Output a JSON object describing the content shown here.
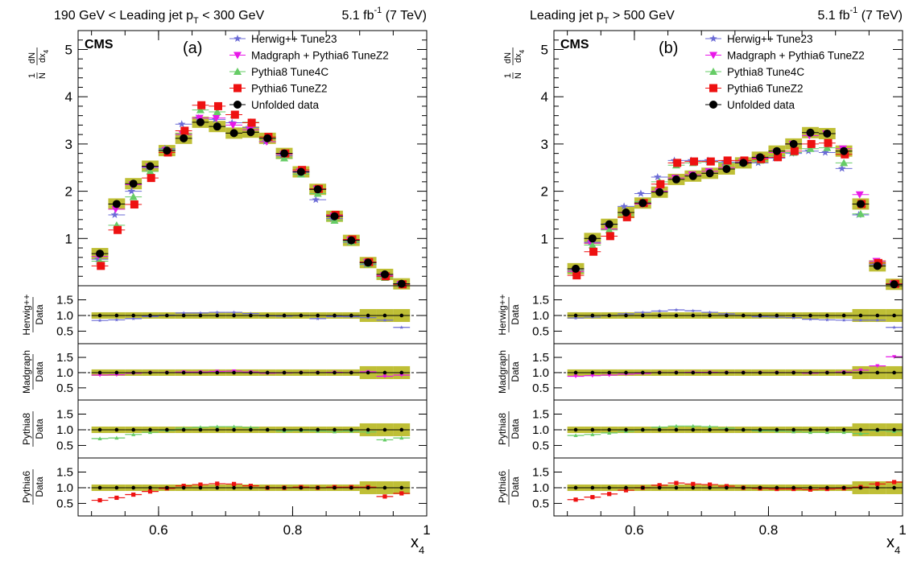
{
  "colors": {
    "herwig": "#6b6bd6",
    "madgraph": "#e818e8",
    "pythia8": "#66cc66",
    "pythia6": "#ee1111",
    "data": "#000000",
    "band": "#b8b820"
  },
  "ratio_labels": [
    {
      "name": "Herwig++",
      "den": "Data"
    },
    {
      "name": "Madgraph",
      "den": "Data"
    },
    {
      "name": "Pythia8",
      "den": "Data"
    },
    {
      "name": "Pythia6",
      "den": "Data"
    }
  ],
  "ratio_ticks": [
    "1.5",
    "1.0",
    "0.5"
  ],
  "xlabel": {
    "main": "x",
    "sub": "4"
  },
  "ylabel": {
    "frac_num": "1",
    "frac_den": "N",
    "d_num": "dN",
    "d_den": "dx",
    "d_sub": "4"
  },
  "chart_data": [
    {
      "type": "scatter",
      "title_left": {
        "pre": "190 GeV < Leading jet p",
        "sub": "T",
        "post": " < 300 GeV"
      },
      "title_right": {
        "lumi": "5.1 fb",
        "sup": "-1",
        "energy": " (7 TeV)"
      },
      "cms": "CMS",
      "panel_label": "(a)",
      "legend": [
        "Herwig++ Tune23",
        "Madgraph + Pythia6 TuneZ2",
        "Pythia8 Tune4C",
        "Pythia6 TuneZ2",
        "Unfolded data"
      ],
      "x": [
        0.5125,
        0.5375,
        0.5625,
        0.5875,
        0.6125,
        0.6375,
        0.6625,
        0.6875,
        0.7125,
        0.7375,
        0.7625,
        0.7875,
        0.8125,
        0.8375,
        0.8625,
        0.8875,
        0.9125,
        0.9375,
        0.9625
      ],
      "xlim": [
        0.48,
        1.0
      ],
      "xticks": [
        "0.6",
        "0.8",
        "1"
      ],
      "ylim": [
        0,
        5.4
      ],
      "yticks": [
        "1",
        "2",
        "3",
        "4",
        "5"
      ],
      "ratio_ylim": [
        0.1,
        1.95
      ],
      "series": [
        {
          "name": "Herwig++ Tune23",
          "values": [
            0.56,
            1.5,
            2.0,
            2.5,
            2.9,
            3.42,
            3.55,
            3.52,
            3.45,
            3.35,
            3.05,
            2.75,
            2.4,
            1.82,
            1.42,
            0.92,
            0.45,
            0.2,
            0.04
          ]
        },
        {
          "name": "Madgraph + Pythia6 TuneZ2",
          "values": [
            0.62,
            1.62,
            2.14,
            2.52,
            2.87,
            3.2,
            3.55,
            3.55,
            3.4,
            3.3,
            3.05,
            2.78,
            2.42,
            2.05,
            1.48,
            0.97,
            0.5,
            0.22,
            0.03
          ]
        },
        {
          "name": "Pythia8 Tune4C",
          "values": [
            0.52,
            1.28,
            1.88,
            2.42,
            2.88,
            3.22,
            3.72,
            3.68,
            3.62,
            3.46,
            3.12,
            2.7,
            2.36,
            1.95,
            1.38,
            0.93,
            0.46,
            0.17,
            0.03
          ]
        },
        {
          "name": "Pythia6 TuneZ2",
          "values": [
            0.42,
            1.18,
            1.72,
            2.28,
            2.82,
            3.28,
            3.82,
            3.8,
            3.62,
            3.45,
            3.15,
            2.8,
            2.45,
            2.05,
            1.5,
            0.98,
            0.5,
            0.2,
            0.03
          ]
        },
        {
          "name": "Unfolded data",
          "values": [
            0.68,
            1.73,
            2.16,
            2.53,
            2.86,
            3.12,
            3.46,
            3.37,
            3.23,
            3.25,
            3.12,
            2.8,
            2.41,
            2.04,
            1.47,
            0.96,
            0.49,
            0.24,
            0.04
          ]
        }
      ],
      "ratios": [
        [
          0.84,
          0.86,
          0.9,
          0.97,
          1.01,
          1.08,
          1.08,
          1.1,
          1.1,
          1.06,
          0.99,
          0.98,
          1.0,
          0.9,
          0.97,
          0.96,
          0.93,
          0.85,
          0.62
        ],
        [
          0.92,
          0.93,
          0.98,
          1.0,
          1.0,
          1.02,
          1.02,
          1.04,
          1.05,
          1.02,
          0.98,
          0.99,
          1.0,
          1.0,
          1.01,
          1.0,
          1.03,
          0.88,
          0.92
        ],
        [
          0.72,
          0.74,
          0.85,
          0.92,
          0.98,
          1.05,
          1.08,
          1.1,
          1.1,
          1.07,
          1.0,
          0.96,
          0.98,
          0.96,
          0.94,
          0.96,
          0.93,
          0.68,
          0.74
        ],
        [
          0.6,
          0.68,
          0.78,
          0.88,
          0.98,
          1.06,
          1.1,
          1.13,
          1.12,
          1.06,
          1.0,
          1.0,
          1.02,
          1.0,
          1.02,
          1.02,
          1.02,
          0.72,
          0.82
        ]
      ]
    },
    {
      "type": "scatter",
      "title_left": {
        "pre": "Leading jet p",
        "sub": "T",
        "post": " > 500 GeV"
      },
      "title_right": {
        "lumi": "5.1 fb",
        "sup": "-1",
        "energy": " (7 TeV)"
      },
      "cms": "CMS",
      "panel_label": "(b)",
      "legend": [
        "Herwig++ Tune23",
        "Madgraph + Pythia6 TuneZ2",
        "Pythia8 Tune4C",
        "Pythia6 TuneZ2",
        "Unfolded data"
      ],
      "x": [
        0.5125,
        0.5375,
        0.5625,
        0.5875,
        0.6125,
        0.6375,
        0.6625,
        0.6875,
        0.7125,
        0.7375,
        0.7625,
        0.7875,
        0.8125,
        0.8375,
        0.8625,
        0.8875,
        0.9125,
        0.9375,
        0.9625,
        0.9875
      ],
      "xlim": [
        0.48,
        1.0
      ],
      "xticks": [
        "0.6",
        "0.8",
        "1"
      ],
      "ylim": [
        0,
        5.4
      ],
      "yticks": [
        "1",
        "2",
        "3",
        "4",
        "5"
      ],
      "ratio_ylim": [
        0.1,
        1.95
      ],
      "series": [
        {
          "name": "Herwig++ Tune23",
          "values": [
            0.33,
            0.92,
            1.3,
            1.68,
            1.95,
            2.3,
            2.65,
            2.65,
            2.65,
            2.62,
            2.6,
            2.6,
            2.7,
            2.8,
            2.85,
            2.82,
            2.48,
            1.5,
            0.45,
            0.03
          ]
        },
        {
          "name": "Madgraph + Pythia6 TuneZ2",
          "values": [
            0.3,
            0.9,
            1.2,
            1.5,
            1.73,
            2.0,
            2.28,
            2.35,
            2.42,
            2.5,
            2.62,
            2.7,
            2.82,
            3.0,
            3.18,
            3.22,
            2.9,
            1.93,
            0.52,
            0.04
          ]
        },
        {
          "name": "Pythia8 Tune4C",
          "values": [
            0.28,
            0.86,
            1.18,
            1.5,
            1.78,
            2.2,
            2.55,
            2.6,
            2.62,
            2.6,
            2.6,
            2.65,
            2.75,
            2.82,
            2.9,
            2.92,
            2.6,
            1.52,
            0.48,
            0.03
          ]
        },
        {
          "name": "Pythia6 TuneZ2",
          "values": [
            0.22,
            0.72,
            1.05,
            1.45,
            1.75,
            2.15,
            2.6,
            2.63,
            2.63,
            2.65,
            2.65,
            2.68,
            2.72,
            2.85,
            3.0,
            3.02,
            2.78,
            1.73,
            0.48,
            0.04
          ]
        },
        {
          "name": "Unfolded data",
          "values": [
            0.36,
            1.0,
            1.3,
            1.55,
            1.75,
            1.98,
            2.25,
            2.32,
            2.38,
            2.47,
            2.6,
            2.72,
            2.85,
            3.0,
            3.24,
            3.22,
            2.85,
            1.73,
            0.42,
            0.03
          ]
        }
      ],
      "ratios": [
        [
          0.92,
          0.95,
          1.0,
          1.05,
          1.1,
          1.14,
          1.18,
          1.15,
          1.1,
          1.05,
          1.0,
          0.96,
          0.95,
          0.93,
          0.88,
          0.86,
          0.85,
          0.85,
          0.85,
          0.62
        ],
        [
          0.88,
          0.9,
          0.92,
          0.95,
          0.97,
          1.0,
          1.0,
          1.01,
          1.01,
          1.0,
          1.0,
          1.0,
          1.0,
          1.0,
          0.98,
          1.0,
          1.02,
          1.08,
          1.22,
          1.52
        ],
        [
          0.82,
          0.85,
          0.9,
          0.95,
          1.0,
          1.08,
          1.12,
          1.12,
          1.1,
          1.05,
          1.0,
          0.97,
          0.96,
          0.94,
          0.92,
          0.92,
          0.92,
          0.88,
          0.98,
          0.95
        ],
        [
          0.62,
          0.7,
          0.8,
          0.92,
          1.0,
          1.08,
          1.15,
          1.12,
          1.1,
          1.05,
          1.0,
          0.98,
          0.96,
          0.96,
          0.94,
          0.96,
          0.98,
          1.02,
          1.12,
          1.18
        ]
      ]
    }
  ]
}
